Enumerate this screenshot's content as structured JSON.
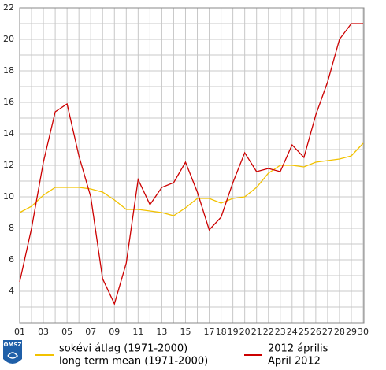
{
  "chart_data": {
    "type": "line",
    "categories": [
      "01",
      null,
      "03",
      null,
      "05",
      null,
      "07",
      null,
      "09",
      null,
      "11",
      null,
      "13",
      null,
      "15",
      null,
      "17",
      "18",
      "19",
      "20",
      "21",
      "22",
      "23",
      "24",
      "25",
      "26",
      "27",
      "28",
      "29",
      "30"
    ],
    "series": [
      {
        "name": [
          "sokévi átlag (1971-2000)",
          "long term mean (1971-2000)"
        ],
        "color": "#f2c200",
        "values": [
          9.0,
          9.4,
          10.1,
          10.6,
          10.6,
          10.6,
          10.5,
          10.3,
          9.8,
          9.2,
          9.2,
          9.1,
          9.0,
          8.8,
          9.3,
          9.9,
          9.9,
          9.6,
          9.9,
          10.0,
          10.6,
          11.5,
          12.0,
          12.0,
          11.9,
          12.2,
          12.3,
          12.4,
          12.6,
          13.4
        ]
      },
      {
        "name": [
          "2012 április",
          "April 2012"
        ],
        "color": "#cc0000",
        "values": [
          4.6,
          8.0,
          12.2,
          15.4,
          15.9,
          12.6,
          10.0,
          4.8,
          3.2,
          5.8,
          11.1,
          9.5,
          10.6,
          10.9,
          12.2,
          10.3,
          7.9,
          8.7,
          10.9,
          12.8,
          11.6,
          11.8,
          11.6,
          13.3,
          12.5,
          15.2,
          17.3,
          20.0,
          21.0,
          21.0
        ]
      }
    ],
    "ylim": [
      2,
      22
    ],
    "yticks": [
      4,
      6,
      8,
      10,
      12,
      14,
      16,
      18,
      20,
      22
    ],
    "y_minor_ticks": [
      3,
      5,
      7,
      9,
      11,
      13,
      15,
      17,
      19,
      21
    ],
    "grid": true,
    "logo": "OMSZ"
  }
}
